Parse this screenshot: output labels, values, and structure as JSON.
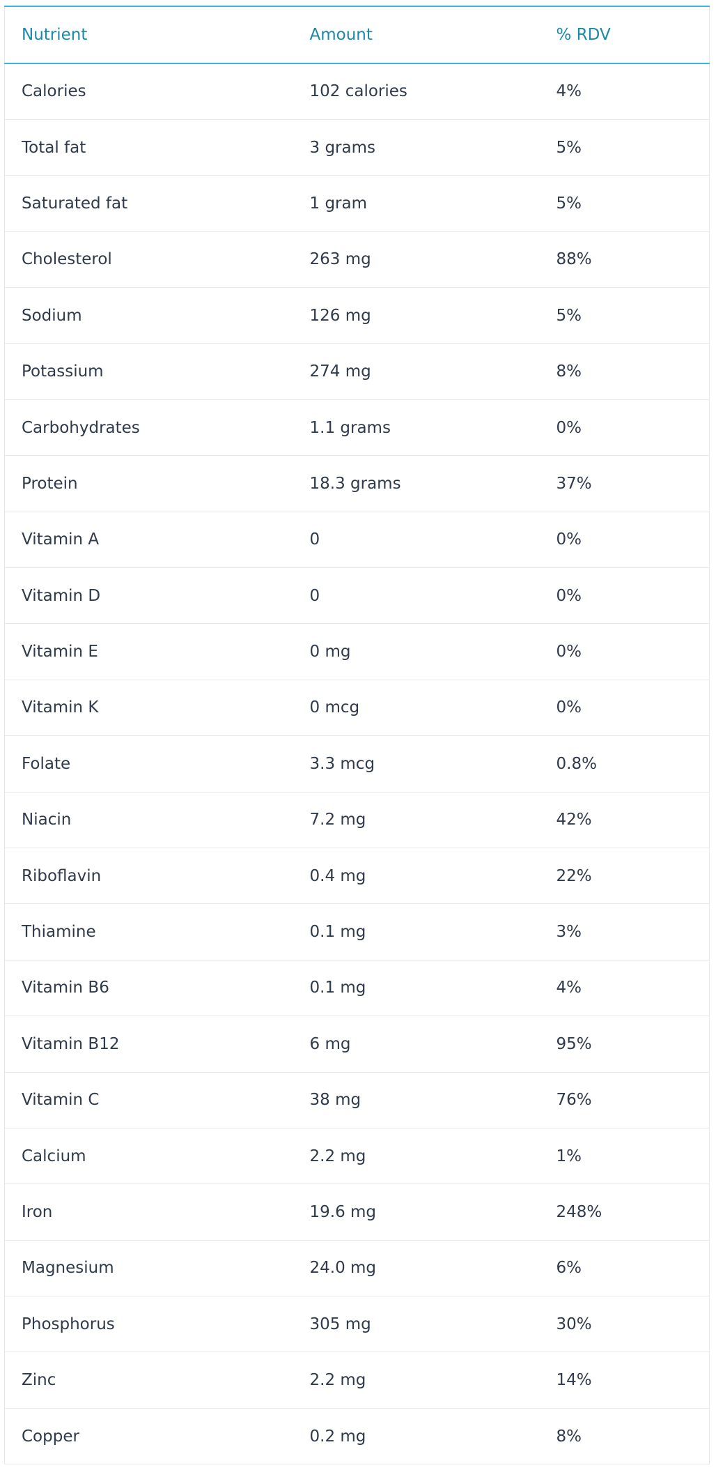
{
  "table": {
    "headers": [
      "Nutrient",
      "Amount",
      "% RDV"
    ],
    "rows": [
      [
        "Calories",
        "102 calories",
        "4%"
      ],
      [
        "Total fat",
        "3 grams",
        "5%"
      ],
      [
        "Saturated fat",
        "1 gram",
        "5%"
      ],
      [
        "Cholesterol",
        "263 mg",
        "88%"
      ],
      [
        "Sodium",
        "126 mg",
        "5%"
      ],
      [
        "Potassium",
        "274 mg",
        "8%"
      ],
      [
        "Carbohydrates",
        "1.1 grams",
        "0%"
      ],
      [
        "Protein",
        "18.3 grams",
        "37%"
      ],
      [
        "Vitamin A",
        "0",
        "0%"
      ],
      [
        "Vitamin D",
        "0",
        "0%"
      ],
      [
        "Vitamin E",
        "0 mg",
        "0%"
      ],
      [
        "Vitamin K",
        "0 mcg",
        "0%"
      ],
      [
        "Folate",
        "3.3 mcg",
        "0.8%"
      ],
      [
        "Niacin",
        "7.2 mg",
        "42%"
      ],
      [
        "Riboflavin",
        "0.4 mg",
        "22%"
      ],
      [
        "Thiamine",
        "0.1 mg",
        "3%"
      ],
      [
        "Vitamin B6",
        "0.1 mg",
        "4%"
      ],
      [
        "Vitamin B12",
        "6 mg",
        "95%"
      ],
      [
        "Vitamin C",
        "38 mg",
        "76%"
      ],
      [
        "Calcium",
        "2.2 mg",
        "1%"
      ],
      [
        "Iron",
        "19.6 mg",
        "248%"
      ],
      [
        "Magnesium",
        "24.0 mg",
        "6%"
      ],
      [
        "Phosphorus",
        "305 mg",
        "30%"
      ],
      [
        "Zinc",
        "2.2 mg",
        "14%"
      ],
      [
        "Copper",
        "0.2 mg",
        "8%"
      ]
    ]
  },
  "colors": {
    "header_text": "#1a8aa8",
    "header_rule": "#41b4dc",
    "body_text": "#2f3a4a",
    "row_border": "#e6e8eb"
  }
}
